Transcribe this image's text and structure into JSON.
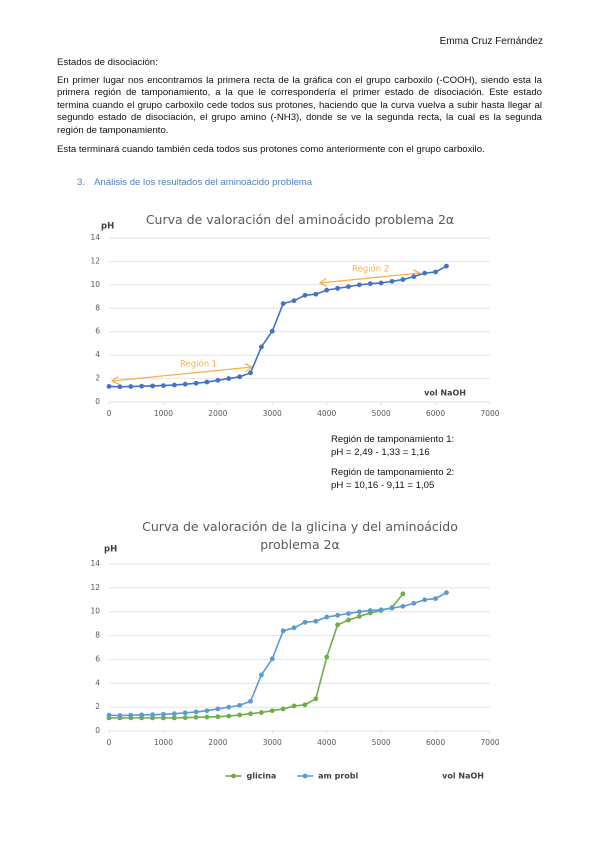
{
  "header": {
    "author": "Emma Cruz Fernández"
  },
  "intro": {
    "heading": "Estados de disociación:",
    "paragraphs": [
      "En primer lugar nos encontramos la primera recta de la gráfica con el grupo carboxilo (-COOH), siendo esta la primera región de tamponamiento, a la que le correspondería el primer estado de disociación. Este estado termina cuando el grupo carboxilo cede todos sus protones, haciendo que la curva vuelva a subir hasta llegar al segundo estado de disociación, el grupo amino (-NH3), donde se ve la segunda recta, la cual es la segunda región de tamponamiento.",
      "Esta terminará cuando también ceda todos sus protones como anteriormente con el grupo carboxilo."
    ]
  },
  "section": {
    "number": "3.",
    "title": "Análisis de los resultados del aminoácido problema"
  },
  "notes": [
    "Región de tamponamiento 1:",
    "pH = 2,49 - 1,33 = 1,16",
    "Región de tamponamiento 2:",
    "pH = 10,16 - 9,11 = 1,05"
  ],
  "chart_data": [
    {
      "type": "line",
      "title": "Curva de valoración del aminoácido problema 2α",
      "y_label": "pH",
      "x_label": "vol NaOH",
      "xlim": [
        0,
        7000
      ],
      "xticks": [
        0,
        1000,
        2000,
        3000,
        4000,
        5000,
        6000,
        7000
      ],
      "ylim": [
        0,
        14
      ],
      "yticks": [
        0,
        2,
        4,
        6,
        8,
        10,
        12,
        14
      ],
      "grid": true,
      "annotations": [
        {
          "text": "Región 1",
          "color": "#f7b04a"
        },
        {
          "text": "Región 2",
          "color": "#f7b04a"
        }
      ],
      "series": [
        {
          "color": "#4472c4",
          "x": [
            0,
            200,
            400,
            600,
            800,
            1000,
            1200,
            1400,
            1600,
            1800,
            2000,
            2200,
            2400,
            2600,
            2800,
            3000,
            3200,
            3400,
            3600,
            3800,
            4000,
            4200,
            4400,
            4600,
            4800,
            5000,
            5200,
            5400,
            5600,
            5800,
            6000,
            6200
          ],
          "values": [
            1.33,
            1.3,
            1.32,
            1.35,
            1.37,
            1.4,
            1.45,
            1.52,
            1.6,
            1.7,
            1.85,
            2.0,
            2.15,
            2.49,
            4.7,
            6.05,
            8.4,
            8.65,
            9.11,
            9.2,
            9.55,
            9.7,
            9.85,
            10.0,
            10.1,
            10.16,
            10.3,
            10.45,
            10.7,
            11.0,
            11.1,
            11.6
          ]
        }
      ]
    },
    {
      "type": "line",
      "title": "Curva de valoración de la glicina y del aminoácido problema 2α",
      "y_label": "pH",
      "x_label": "vol NaOH",
      "xlim": [
        0,
        7000
      ],
      "xticks": [
        0,
        1000,
        2000,
        3000,
        4000,
        5000,
        6000,
        7000
      ],
      "ylim": [
        0,
        14
      ],
      "yticks": [
        0,
        2,
        4,
        6,
        8,
        10,
        12,
        14
      ],
      "grid": true,
      "legend": "bottom",
      "series": [
        {
          "name": "glicina",
          "color": "#70ad47",
          "x": [
            0,
            200,
            400,
            600,
            800,
            1000,
            1200,
            1400,
            1600,
            1800,
            2000,
            2200,
            2400,
            2600,
            2800,
            3000,
            3200,
            3400,
            3600,
            3800,
            4000,
            4200,
            4400,
            4600,
            4800,
            5000,
            5200,
            5400
          ],
          "values": [
            1.1,
            1.1,
            1.1,
            1.1,
            1.1,
            1.1,
            1.1,
            1.12,
            1.15,
            1.17,
            1.2,
            1.25,
            1.35,
            1.45,
            1.55,
            1.7,
            1.85,
            2.1,
            2.2,
            2.7,
            6.2,
            8.9,
            9.3,
            9.6,
            9.9,
            10.1,
            10.35,
            11.5
          ]
        },
        {
          "name": "am probl",
          "color": "#5b9bd5",
          "x": [
            0,
            200,
            400,
            600,
            800,
            1000,
            1200,
            1400,
            1600,
            1800,
            2000,
            2200,
            2400,
            2600,
            2800,
            3000,
            3200,
            3400,
            3600,
            3800,
            4000,
            4200,
            4400,
            4600,
            4800,
            5000,
            5200,
            5400,
            5600,
            5800,
            6000,
            6200
          ],
          "values": [
            1.33,
            1.3,
            1.32,
            1.35,
            1.37,
            1.4,
            1.45,
            1.52,
            1.6,
            1.7,
            1.85,
            2.0,
            2.15,
            2.49,
            4.7,
            6.05,
            8.4,
            8.65,
            9.11,
            9.2,
            9.55,
            9.7,
            9.85,
            10.0,
            10.1,
            10.16,
            10.3,
            10.45,
            10.7,
            11.0,
            11.1,
            11.6
          ]
        }
      ]
    }
  ]
}
